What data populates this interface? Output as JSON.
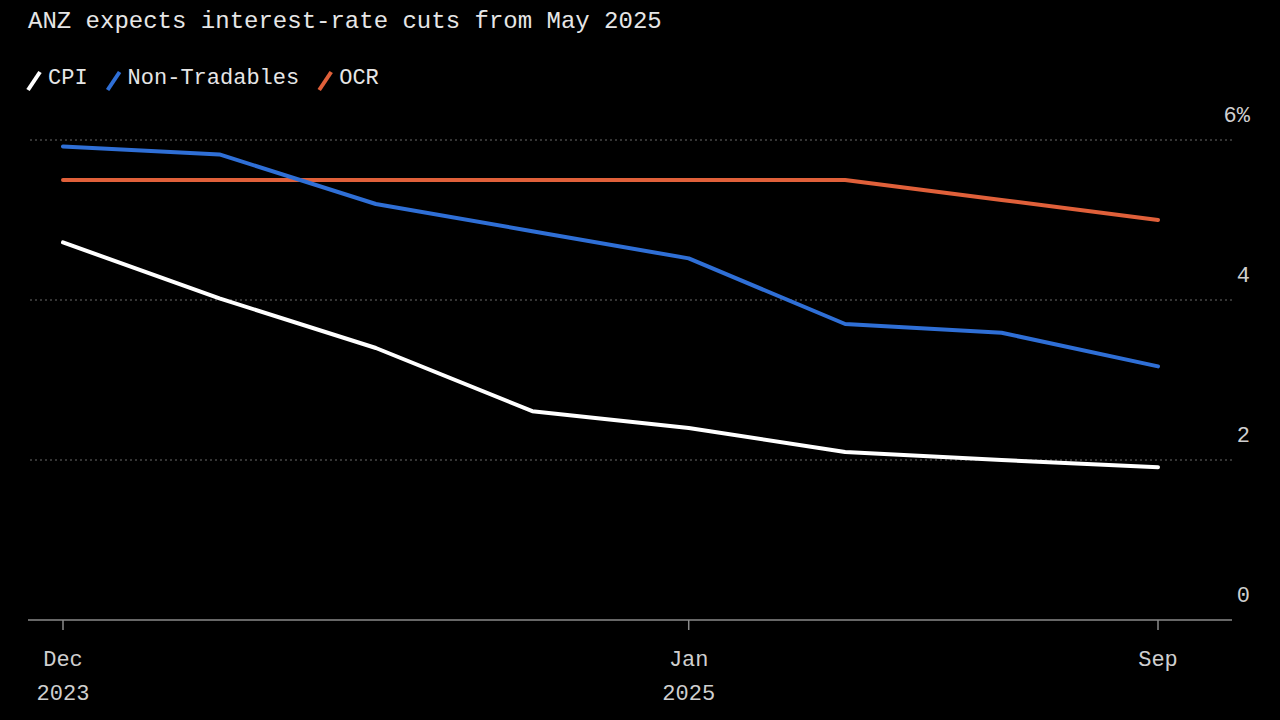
{
  "chart_data": {
    "type": "line",
    "title": "ANZ expects interest-rate cuts from May 2025",
    "categories": [
      "Dec 2023",
      null,
      null,
      null,
      "Jan 2025",
      null,
      null,
      "Sep"
    ],
    "series": [
      {
        "name": "CPI",
        "color": "#ffffff",
        "values": [
          4.72,
          4.02,
          3.4,
          2.61,
          2.4,
          2.1,
          2.0,
          1.91
        ]
      },
      {
        "name": "Non-Tradables",
        "color": "#2f6fd6",
        "values": [
          5.92,
          5.82,
          5.2,
          4.86,
          4.52,
          3.7,
          3.59,
          3.17
        ]
      },
      {
        "name": "OCR",
        "color": "#e0603a",
        "values": [
          5.5,
          5.5,
          5.5,
          5.5,
          5.5,
          5.5,
          5.25,
          5.0
        ]
      }
    ],
    "ylim": [
      0,
      6
    ],
    "yticks": [
      0,
      2,
      4,
      {
        "value": 6,
        "label": "6%"
      }
    ],
    "grid": true,
    "legend": "top-left"
  }
}
